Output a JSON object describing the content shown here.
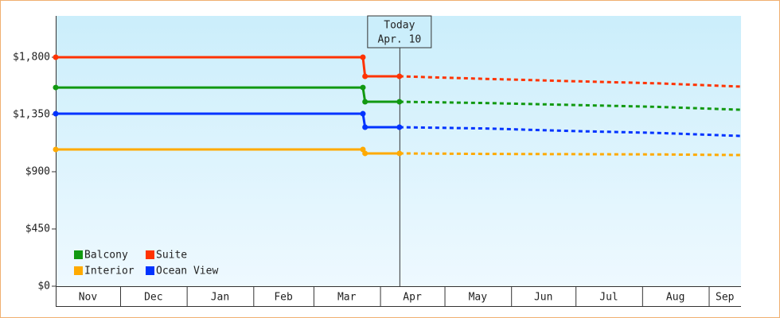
{
  "chart_data": {
    "type": "line",
    "x": [
      0,
      143,
      144,
      160,
      200,
      240,
      280,
      319
    ],
    "xlim": [
      0,
      319
    ],
    "xticks": [
      {
        "value": 0,
        "label": "Nov"
      },
      {
        "value": 30,
        "label": "Dec"
      },
      {
        "value": 61,
        "label": "Jan"
      },
      {
        "value": 92,
        "label": "Feb"
      },
      {
        "value": 120,
        "label": "Mar"
      },
      {
        "value": 151,
        "label": "Apr"
      },
      {
        "value": 181,
        "label": "May"
      },
      {
        "value": 212,
        "label": "Jun"
      },
      {
        "value": 242,
        "label": "Jul"
      },
      {
        "value": 273,
        "label": "Aug"
      },
      {
        "value": 304,
        "label": "Sep"
      }
    ],
    "ylim": [
      0,
      2125
    ],
    "yticks": [
      {
        "value": 0,
        "label": "$0"
      },
      {
        "value": 450,
        "label": "$450"
      },
      {
        "value": 900,
        "label": "$900"
      },
      {
        "value": 1350,
        "label": "$1,350"
      },
      {
        "value": 1800,
        "label": "$1,800"
      }
    ],
    "today": {
      "x": 160,
      "label": "Today",
      "date": "Apr. 10"
    },
    "series": [
      {
        "name": "Balcony",
        "color": "#119911",
        "values": [
          1562,
          1562,
          1450,
          1450,
          1440,
          1425,
          1410,
          1387
        ]
      },
      {
        "name": "Suite",
        "color": "#ff3300",
        "values": [
          1800,
          1800,
          1650,
          1650,
          1630,
          1612,
          1595,
          1569
        ]
      },
      {
        "name": "Interior",
        "color": "#ffaa00",
        "values": [
          1075,
          1075,
          1044,
          1044,
          1040,
          1038,
          1036,
          1031
        ]
      },
      {
        "name": "Ocean View",
        "color": "#0033ff",
        "values": [
          1356,
          1356,
          1250,
          1250,
          1240,
          1220,
          1205,
          1181
        ]
      }
    ]
  }
}
